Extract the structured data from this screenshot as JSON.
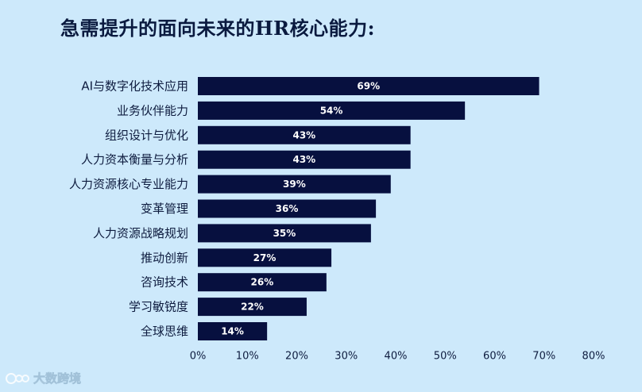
{
  "title": "急需提升的面向未来的HR核心能力:",
  "watermark": {
    "text": "大数跨境",
    "icon": "brand-logo-icon"
  },
  "colors": {
    "background": "#cde9fb",
    "bar": "#07103f",
    "text": "#0e1c3f"
  },
  "chart_data": {
    "type": "bar",
    "orientation": "horizontal",
    "categories": [
      "AI与数字化技术应用",
      "业务伙伴能力",
      "组织设计与优化",
      "人力资本衡量与分析",
      "人力资源核心专业能力",
      "变革管理",
      "人力资源战略规划",
      "推动创新",
      "咨询技术",
      "学习敏锐度",
      "全球思维"
    ],
    "values": [
      69,
      54,
      43,
      43,
      39,
      36,
      35,
      27,
      26,
      22,
      14
    ],
    "value_labels": [
      "69%",
      "54%",
      "43%",
      "43%",
      "39%",
      "36%",
      "35%",
      "27%",
      "26%",
      "22%",
      "14%"
    ],
    "xlim": [
      0,
      80
    ],
    "xticks": [
      "0%",
      "10%",
      "20%",
      "30%",
      "40%",
      "50%",
      "60%",
      "70%",
      "80%"
    ],
    "grid": false,
    "legend": "none"
  }
}
